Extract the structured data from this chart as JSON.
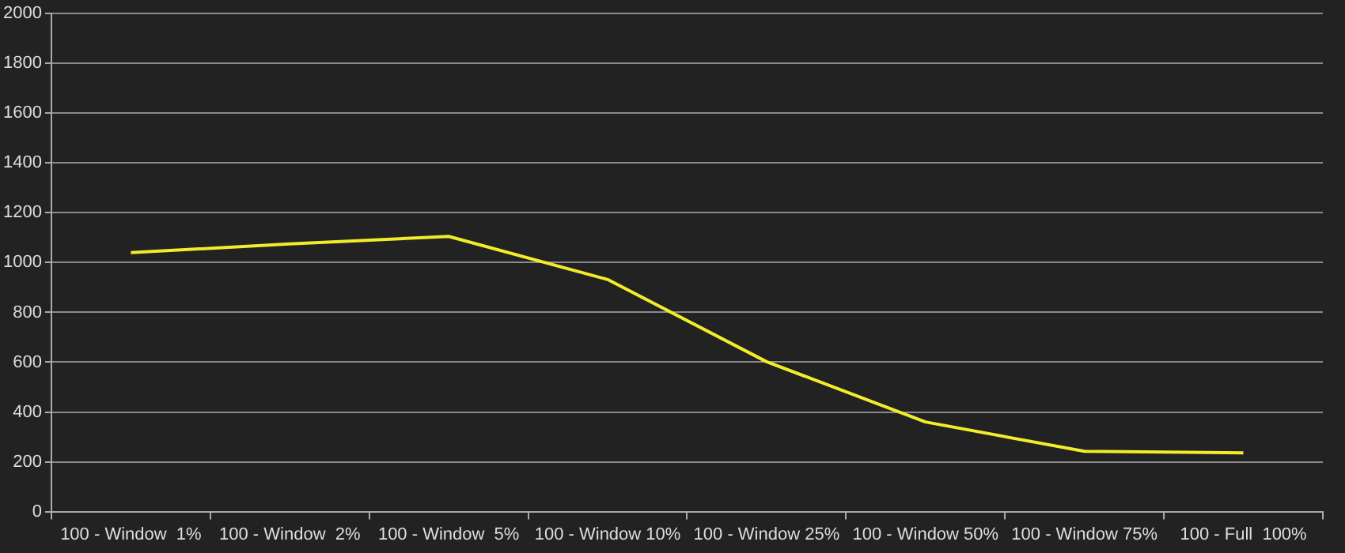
{
  "chart_data": {
    "type": "line",
    "categories": [
      "100 - Window  1%",
      "100 - Window  2%",
      "100 - Window  5%",
      "100 - Window 10%",
      "100 - Window 25%",
      "100 - Window 50%",
      "100 - Window 75%",
      "100 - Full  100%"
    ],
    "series": [
      {
        "color": "#f2ec2a",
        "values": [
          1040,
          1075,
          1105,
          932,
          602,
          360,
          242,
          236
        ]
      }
    ],
    "ylim": [
      0,
      2000
    ],
    "yticks": [
      0,
      200,
      400,
      600,
      800,
      1000,
      1200,
      1400,
      1600,
      1800,
      2000
    ],
    "grid": "y",
    "legend": false,
    "marker": "none",
    "line_style": "solid"
  }
}
